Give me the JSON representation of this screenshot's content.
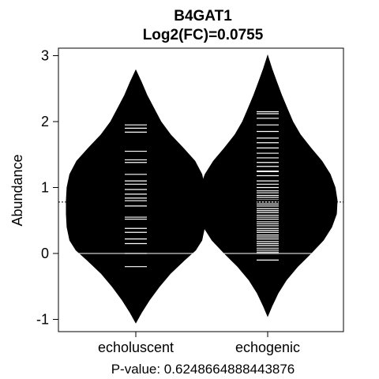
{
  "chart_data": {
    "type": "beanplot",
    "title": "B4GAT1",
    "subtitle": "Log2(FC)=0.0755",
    "ylabel": "Abundance",
    "xlabel": "P-value: 0.6248664888443876",
    "ylim": [
      -1.2,
      3.1
    ],
    "yticks": [
      "-1",
      "0",
      "1",
      "2",
      "3"
    ],
    "overall_mean": 0.78,
    "grid": false,
    "colors": {
      "bean": "#000000",
      "lines": "#ffffff",
      "background": "#ffffff"
    },
    "categories": [
      "echoluscent",
      "echogenic"
    ],
    "series": [
      {
        "category": "echoluscent",
        "mean": 0.75,
        "density": [
          [
            -1.05,
            0.0
          ],
          [
            -0.9,
            0.08
          ],
          [
            -0.7,
            0.2
          ],
          [
            -0.5,
            0.34
          ],
          [
            -0.3,
            0.5
          ],
          [
            -0.1,
            0.7
          ],
          [
            0.05,
            0.86
          ],
          [
            0.2,
            0.95
          ],
          [
            0.4,
            0.99
          ],
          [
            0.6,
            1.0
          ],
          [
            0.8,
            1.0
          ],
          [
            1.0,
            0.99
          ],
          [
            1.2,
            0.95
          ],
          [
            1.4,
            0.85
          ],
          [
            1.6,
            0.68
          ],
          [
            1.8,
            0.5
          ],
          [
            2.0,
            0.36
          ],
          [
            2.2,
            0.26
          ],
          [
            2.4,
            0.16
          ],
          [
            2.6,
            0.08
          ],
          [
            2.78,
            0.0
          ]
        ],
        "points": [
          -0.2,
          0.0,
          0.15,
          0.22,
          0.32,
          0.38,
          0.52,
          0.55,
          0.72,
          0.8,
          0.84,
          0.9,
          0.97,
          1.05,
          1.1,
          1.2,
          1.38,
          1.42,
          1.55,
          1.84,
          1.9,
          1.95
        ]
      },
      {
        "category": "echogenic",
        "mean": 0.83,
        "density": [
          [
            -0.95,
            0.0
          ],
          [
            -0.8,
            0.06
          ],
          [
            -0.6,
            0.15
          ],
          [
            -0.4,
            0.27
          ],
          [
            -0.2,
            0.43
          ],
          [
            0.0,
            0.62
          ],
          [
            0.2,
            0.8
          ],
          [
            0.4,
            0.92
          ],
          [
            0.6,
            0.99
          ],
          [
            0.8,
            1.0
          ],
          [
            1.0,
            0.97
          ],
          [
            1.2,
            0.9
          ],
          [
            1.4,
            0.78
          ],
          [
            1.6,
            0.62
          ],
          [
            1.8,
            0.47
          ],
          [
            2.0,
            0.36
          ],
          [
            2.2,
            0.28
          ],
          [
            2.4,
            0.2
          ],
          [
            2.6,
            0.13
          ],
          [
            2.8,
            0.06
          ],
          [
            3.0,
            0.0
          ]
        ],
        "points": [
          -0.1,
          0.0,
          0.02,
          0.05,
          0.08,
          0.12,
          0.15,
          0.18,
          0.22,
          0.25,
          0.28,
          0.32,
          0.35,
          0.38,
          0.42,
          0.45,
          0.48,
          0.52,
          0.55,
          0.58,
          0.62,
          0.65,
          0.68,
          0.72,
          0.75,
          0.78,
          0.82,
          0.85,
          0.88,
          0.92,
          0.95,
          1.0,
          1.05,
          1.1,
          1.18,
          1.24,
          1.25,
          1.32,
          1.38,
          1.45,
          1.52,
          1.6,
          1.68,
          1.75,
          1.85,
          1.95,
          2.05,
          2.12,
          2.15
        ]
      }
    ]
  }
}
